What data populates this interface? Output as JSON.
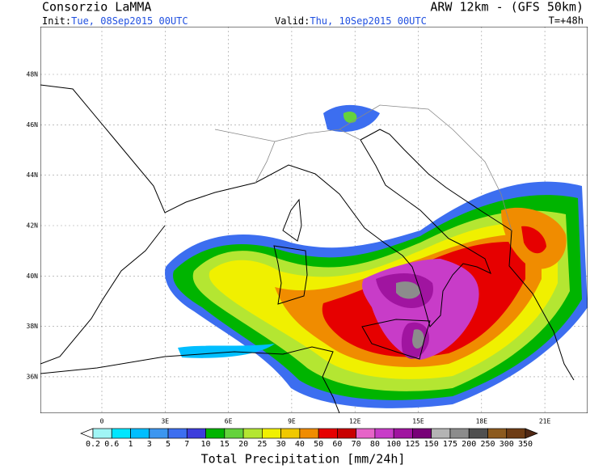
{
  "header": {
    "left_title": "Consorzio LaMMA",
    "right_title": "ARW 12km - (GFS 50km)",
    "init_label": "Init:",
    "init_value": "Tue, 08Sep2015 00UTC",
    "valid_label": "Valid:",
    "valid_value": "Thu, 10Sep2015 00UTC",
    "lead_time": "T=+48h"
  },
  "map": {
    "lat_labels": [
      "48N",
      "46N",
      "44N",
      "42N",
      "40N",
      "38N",
      "36N"
    ],
    "lon_labels": [
      "0",
      "3E",
      "6E",
      "9E",
      "12E",
      "15E",
      "18E",
      "21E"
    ]
  },
  "legend": {
    "title": "Total Precipitation [mm/24h]",
    "labels": [
      0.2,
      0.6,
      1,
      3,
      5,
      7,
      10,
      15,
      20,
      25,
      30,
      40,
      50,
      60,
      70,
      80,
      100,
      125,
      150,
      175,
      200,
      250,
      300,
      350
    ],
    "colors": [
      "#ffffff",
      "#a0f5f5",
      "#00e6ff",
      "#00beff",
      "#3c96f0",
      "#3c6ef0",
      "#3c3cdc",
      "#00b400",
      "#64d23c",
      "#b4e632",
      "#f0f000",
      "#f0c800",
      "#f08c00",
      "#e60000",
      "#c80000",
      "#e664c8",
      "#c83cc8",
      "#a014a0",
      "#780078",
      "#b4b4b4",
      "#8c8c8c",
      "#505050",
      "#8c5a1e",
      "#6e3c14",
      "#502814"
    ]
  }
}
